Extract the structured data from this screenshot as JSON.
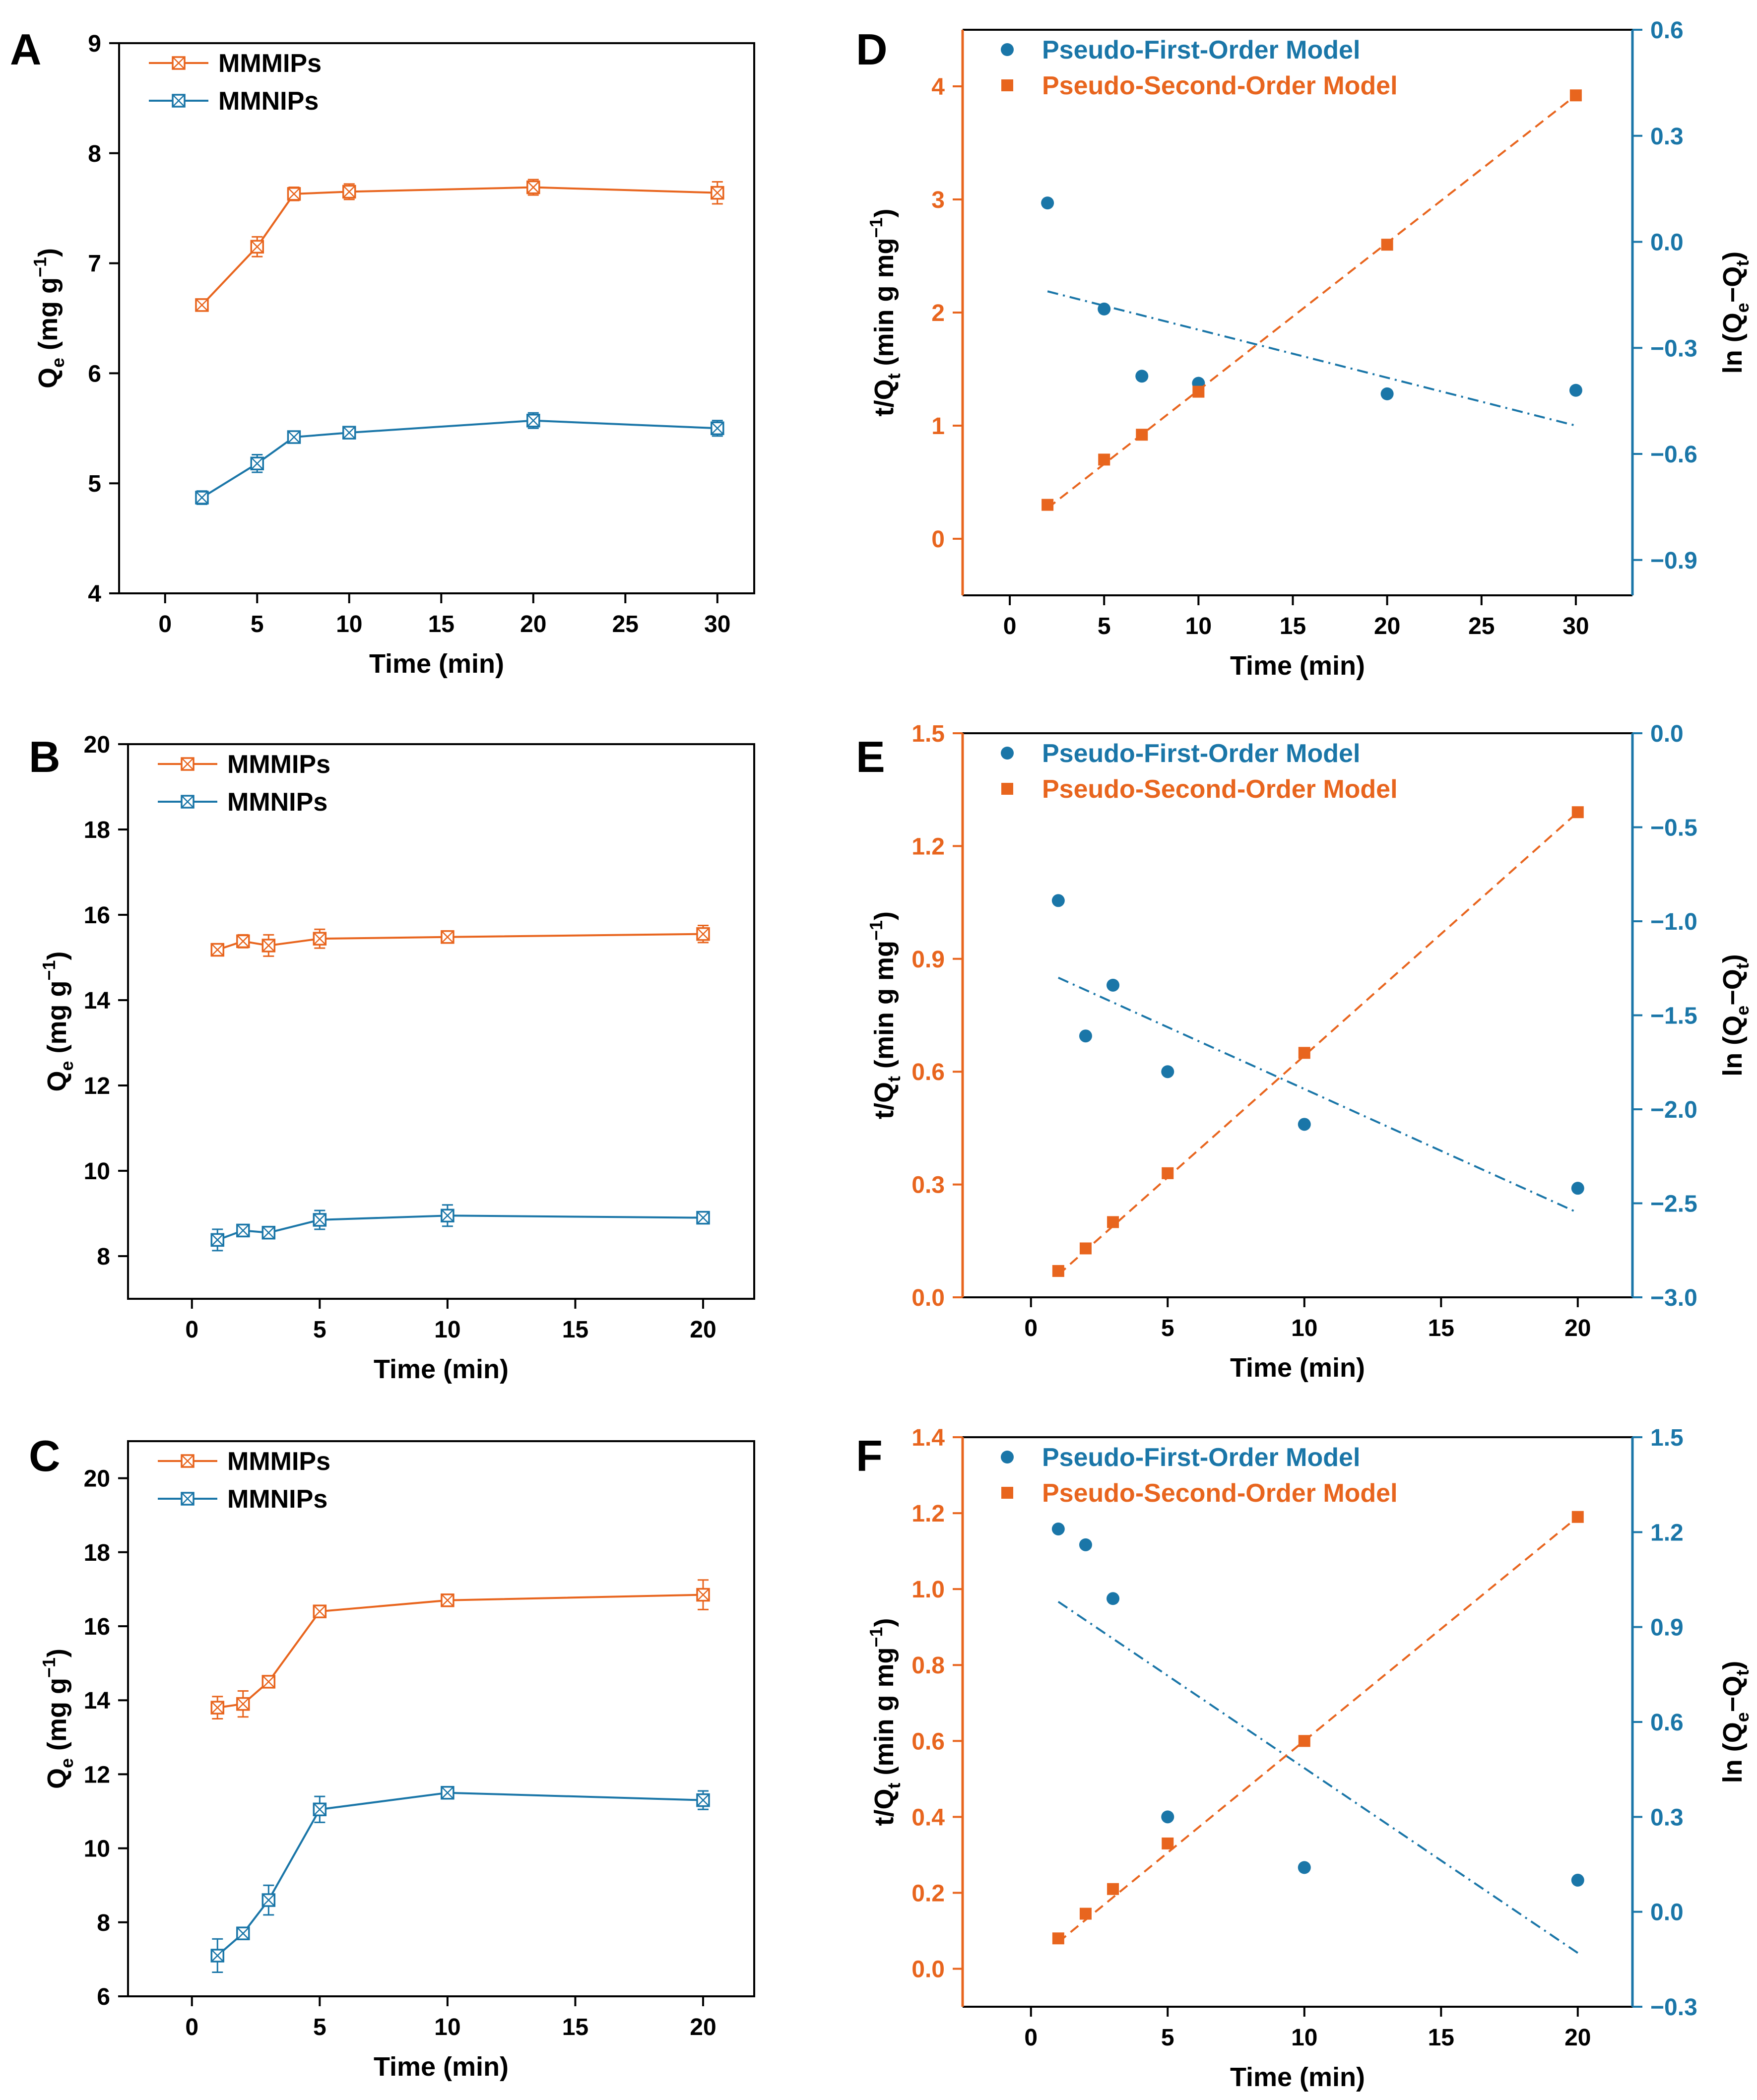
{
  "colors": {
    "orange": "#E8651E",
    "blue": "#1A76A8",
    "axis": "#000000"
  },
  "chart_data": [
    {
      "id": "A",
      "type": "line",
      "letter": "A",
      "xlabel": "Time (min)",
      "ylabel_main": "Q",
      "ylabel_sub": "e",
      "ylabel_rest": " (mg g",
      "ylabel_sup": "−1",
      "ylabel_end": ")",
      "xlim": [
        -2.5,
        32
      ],
      "ylim": [
        4,
        9
      ],
      "xticks": [
        0,
        5,
        10,
        15,
        20,
        25,
        30
      ],
      "yticks": [
        4,
        5,
        6,
        7,
        8,
        9
      ],
      "x": [
        2,
        5,
        7,
        10,
        20,
        30
      ],
      "series": [
        {
          "name": "MMMIPs",
          "color": "#E8651E",
          "values": [
            6.62,
            7.15,
            7.63,
            7.65,
            7.69,
            7.64
          ],
          "errors": [
            0.04,
            0.09,
            0.06,
            0.07,
            0.07,
            0.1
          ]
        },
        {
          "name": "MMNIPs",
          "color": "#1A76A8",
          "values": [
            4.87,
            5.18,
            5.42,
            5.46,
            5.57,
            5.5
          ],
          "errors": [
            0.06,
            0.08,
            0.05,
            0.04,
            0.07,
            0.07
          ]
        }
      ]
    },
    {
      "id": "B",
      "type": "line",
      "letter": "B",
      "xlabel": "Time (min)",
      "ylabel_main": "Q",
      "ylabel_sub": "e",
      "ylabel_rest": " (mg g",
      "ylabel_sup": "−1",
      "ylabel_end": ")",
      "xlim": [
        -2.5,
        22
      ],
      "ylim": [
        7,
        20
      ],
      "xticks": [
        0,
        5,
        10,
        15,
        20
      ],
      "yticks": [
        8,
        10,
        12,
        14,
        16,
        18,
        20
      ],
      "x": [
        1,
        2,
        3,
        5,
        10,
        20
      ],
      "series": [
        {
          "name": "MMMIPs",
          "color": "#E8651E",
          "values": [
            15.18,
            15.38,
            15.28,
            15.44,
            15.48,
            15.55
          ],
          "errors": [
            0.1,
            0.15,
            0.25,
            0.22,
            0.1,
            0.2
          ]
        },
        {
          "name": "MMNIPs",
          "color": "#1A76A8",
          "values": [
            8.38,
            8.6,
            8.55,
            8.85,
            8.95,
            8.9
          ],
          "errors": [
            0.25,
            0.1,
            0.12,
            0.22,
            0.25,
            0.1
          ]
        }
      ]
    },
    {
      "id": "C",
      "type": "line",
      "letter": "C",
      "xlabel": "Time (min)",
      "ylabel_main": "Q",
      "ylabel_sub": "e",
      "ylabel_rest": " (mg g",
      "ylabel_sup": "−1",
      "ylabel_end": ")",
      "xlim": [
        -2.5,
        22
      ],
      "ylim": [
        6,
        21
      ],
      "xticks": [
        0,
        5,
        10,
        15,
        20
      ],
      "yticks": [
        6,
        8,
        10,
        12,
        14,
        16,
        18,
        20
      ],
      "x": [
        1,
        2,
        3,
        5,
        10,
        20
      ],
      "series": [
        {
          "name": "MMMIPs",
          "color": "#E8651E",
          "values": [
            13.8,
            13.9,
            14.5,
            16.4,
            16.7,
            16.85
          ],
          "errors": [
            0.3,
            0.35,
            0.12,
            0.12,
            0.1,
            0.4
          ]
        },
        {
          "name": "MMNIPs",
          "color": "#1A76A8",
          "values": [
            7.1,
            7.7,
            8.6,
            11.05,
            11.5,
            11.3
          ],
          "errors": [
            0.45,
            0.12,
            0.4,
            0.35,
            0.12,
            0.25
          ]
        }
      ]
    },
    {
      "id": "D",
      "type": "scatter",
      "letter": "D",
      "xlabel": "Time (min)",
      "ylabel_left_main": "t/Q",
      "ylabel_left_sub": "t",
      "ylabel_left_rest": "  (min g mg",
      "ylabel_left_sup": "−1",
      "ylabel_left_end": ")",
      "ylabel_right_main": "ln (Q",
      "ylabel_right_sub1": "e",
      "ylabel_right_mid": "−Q",
      "ylabel_right_sub2": "t",
      "ylabel_right_end": ")",
      "xlim": [
        -2.5,
        33
      ],
      "ylim_left": [
        -0.5,
        4.5
      ],
      "ylim_right": [
        -1.0,
        0.6
      ],
      "xticks": [
        0,
        5,
        10,
        15,
        20,
        25,
        30
      ],
      "yticks_left": [
        0,
        1,
        2,
        3,
        4
      ],
      "yticks_right": [
        -0.9,
        -0.6,
        -0.3,
        0.0,
        0.3,
        0.6
      ],
      "yticks_right_labels": [
        "−0.9",
        "−0.6",
        "−0.3",
        "0.0",
        "0.3",
        "0.6"
      ],
      "series": [
        {
          "name": "Pseudo-First-Order Model",
          "axis": "right",
          "color": "#1A76A8",
          "marker": "circle",
          "x": [
            2,
            5,
            7,
            10,
            20,
            30
          ],
          "values": [
            0.11,
            -0.19,
            -0.38,
            -0.4,
            -0.43,
            -0.42
          ],
          "fit": [
            2,
            -0.14,
            30,
            -0.52
          ]
        },
        {
          "name": "Pseudo-Second-Order Model",
          "axis": "left",
          "color": "#E8651E",
          "marker": "square",
          "x": [
            2,
            5,
            7,
            10,
            20,
            30
          ],
          "values": [
            0.3,
            0.7,
            0.92,
            1.3,
            2.6,
            3.92
          ],
          "fit": [
            2,
            0.27,
            30,
            3.92
          ]
        }
      ]
    },
    {
      "id": "E",
      "type": "scatter",
      "letter": "E",
      "xlabel": "Time (min)",
      "ylabel_left_main": "t/Q",
      "ylabel_left_sub": "t",
      "ylabel_left_rest": "  (min g mg",
      "ylabel_left_sup": "−1",
      "ylabel_left_end": ")",
      "ylabel_right_main": "ln (Q",
      "ylabel_right_sub1": "e",
      "ylabel_right_mid": "−Q",
      "ylabel_right_sub2": "t",
      "ylabel_right_end": ")",
      "xlim": [
        -2.5,
        22
      ],
      "ylim_left": [
        0,
        1.5
      ],
      "ylim_right": [
        -3.0,
        0.0
      ],
      "xticks": [
        0,
        5,
        10,
        15,
        20
      ],
      "yticks_left": [
        0.0,
        0.3,
        0.6,
        0.9,
        1.2,
        1.5
      ],
      "yticks_left_labels": [
        "0.0",
        "0.3",
        "0.6",
        "0.9",
        "1.2",
        "1.5"
      ],
      "yticks_right": [
        -3.0,
        -2.5,
        -2.0,
        -1.5,
        -1.0,
        -0.5,
        0.0
      ],
      "yticks_right_labels": [
        "−3.0",
        "−2.5",
        "−2.0",
        "−1.5",
        "−1.0",
        "−0.5",
        "0.0"
      ],
      "series": [
        {
          "name": "Pseudo-First-Order Model",
          "axis": "right",
          "color": "#1A76A8",
          "marker": "circle",
          "x": [
            1,
            2,
            3,
            5,
            10,
            20
          ],
          "values": [
            -0.89,
            -1.61,
            -1.34,
            -1.8,
            -2.08,
            -2.42
          ],
          "fit": [
            1,
            -1.3,
            20,
            -2.55
          ]
        },
        {
          "name": "Pseudo-Second-Order Model",
          "axis": "left",
          "color": "#E8651E",
          "marker": "square",
          "x": [
            1,
            2,
            3,
            5,
            10,
            20
          ],
          "values": [
            0.07,
            0.13,
            0.2,
            0.33,
            0.65,
            1.29
          ],
          "fit": [
            1,
            0.06,
            20,
            1.29
          ]
        }
      ]
    },
    {
      "id": "F",
      "type": "scatter",
      "letter": "F",
      "xlabel": "Time (min)",
      "ylabel_left_main": "t/Q",
      "ylabel_left_sub": "t",
      "ylabel_left_rest": "  (min g mg",
      "ylabel_left_sup": "−1",
      "ylabel_left_end": ")",
      "ylabel_right_main": "ln (Q",
      "ylabel_right_sub1": "e",
      "ylabel_right_mid": "−Q",
      "ylabel_right_sub2": "t",
      "ylabel_right_end": ")",
      "xlim": [
        -2.5,
        22
      ],
      "ylim_left": [
        -0.1,
        1.4
      ],
      "ylim_right": [
        -0.3,
        1.5
      ],
      "xticks": [
        0,
        5,
        10,
        15,
        20
      ],
      "yticks_left": [
        0.0,
        0.2,
        0.4,
        0.6,
        0.8,
        1.0,
        1.2,
        1.4
      ],
      "yticks_left_labels": [
        "0.0",
        "0.2",
        "0.4",
        "0.6",
        "0.8",
        "1.0",
        "1.2",
        "1.4"
      ],
      "yticks_right": [
        -0.3,
        0.0,
        0.3,
        0.6,
        0.9,
        1.2,
        1.5
      ],
      "yticks_right_labels": [
        "−0.3",
        "0.0",
        "0.3",
        "0.6",
        "0.9",
        "1.2",
        "1.5"
      ],
      "series": [
        {
          "name": "Pseudo-First-Order Model",
          "axis": "right",
          "color": "#1A76A8",
          "marker": "circle",
          "x": [
            1,
            2,
            3,
            5,
            10,
            20
          ],
          "values": [
            1.21,
            1.16,
            0.99,
            0.3,
            0.14,
            0.1
          ],
          "fit": [
            1,
            0.98,
            20,
            -0.13
          ]
        },
        {
          "name": "Pseudo-Second-Order Model",
          "axis": "left",
          "color": "#E8651E",
          "marker": "square",
          "x": [
            1,
            2,
            3,
            5,
            10,
            20
          ],
          "values": [
            0.08,
            0.145,
            0.21,
            0.33,
            0.6,
            1.19
          ],
          "fit": [
            1,
            0.07,
            20,
            1.19
          ]
        }
      ]
    }
  ]
}
